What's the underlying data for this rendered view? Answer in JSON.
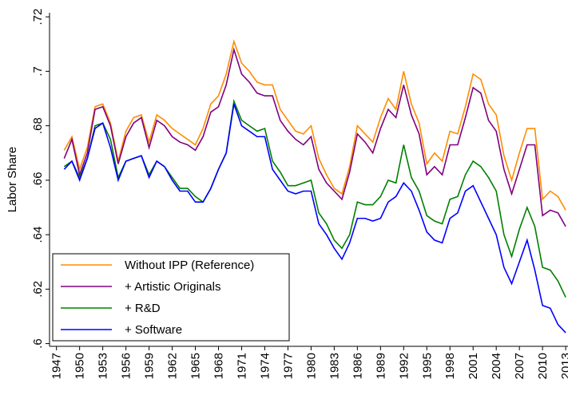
{
  "chart_data": {
    "type": "line",
    "y_label": "Labor Share",
    "x": [
      1948,
      1949,
      1950,
      1951,
      1952,
      1953,
      1954,
      1955,
      1956,
      1957,
      1958,
      1959,
      1960,
      1961,
      1962,
      1963,
      1964,
      1965,
      1966,
      1967,
      1968,
      1969,
      1970,
      1971,
      1972,
      1973,
      1974,
      1975,
      1976,
      1977,
      1978,
      1979,
      1980,
      1981,
      1982,
      1983,
      1984,
      1985,
      1986,
      1987,
      1988,
      1989,
      1990,
      1991,
      1992,
      1993,
      1994,
      1995,
      1996,
      1997,
      1998,
      1999,
      2000,
      2001,
      2002,
      2003,
      2004,
      2005,
      2006,
      2007,
      2008,
      2009,
      2010,
      2011,
      2012,
      2013
    ],
    "series": [
      {
        "name": "Without IPP (Reference)",
        "color": "#ff8c00",
        "values": [
          0.671,
          0.676,
          0.664,
          0.672,
          0.687,
          0.688,
          0.681,
          0.667,
          0.678,
          0.683,
          0.684,
          0.674,
          0.684,
          0.682,
          0.679,
          0.677,
          0.675,
          0.673,
          0.679,
          0.688,
          0.691,
          0.699,
          0.711,
          0.703,
          0.7,
          0.696,
          0.695,
          0.695,
          0.686,
          0.682,
          0.678,
          0.677,
          0.68,
          0.668,
          0.662,
          0.657,
          0.655,
          0.665,
          0.68,
          0.677,
          0.674,
          0.683,
          0.69,
          0.686,
          0.7,
          0.688,
          0.681,
          0.666,
          0.67,
          0.667,
          0.678,
          0.677,
          0.687,
          0.699,
          0.697,
          0.688,
          0.684,
          0.669,
          0.66,
          0.67,
          0.679,
          0.679,
          0.653,
          0.656,
          0.654,
          0.649
        ]
      },
      {
        "name": "+ Artistic Originals",
        "color": "#800080",
        "values": [
          0.668,
          0.675,
          0.662,
          0.67,
          0.686,
          0.687,
          0.68,
          0.666,
          0.676,
          0.681,
          0.683,
          0.672,
          0.682,
          0.68,
          0.676,
          0.674,
          0.673,
          0.671,
          0.676,
          0.685,
          0.687,
          0.695,
          0.708,
          0.699,
          0.696,
          0.692,
          0.691,
          0.691,
          0.682,
          0.678,
          0.675,
          0.673,
          0.676,
          0.664,
          0.659,
          0.656,
          0.653,
          0.663,
          0.677,
          0.674,
          0.67,
          0.679,
          0.686,
          0.683,
          0.695,
          0.684,
          0.677,
          0.662,
          0.665,
          0.662,
          0.673,
          0.673,
          0.683,
          0.694,
          0.692,
          0.682,
          0.678,
          0.664,
          0.655,
          0.664,
          0.673,
          0.673,
          0.647,
          0.649,
          0.648,
          0.643
        ]
      },
      {
        "name": "+ R&D",
        "color": "#008000",
        "values": [
          0.665,
          0.667,
          0.661,
          0.668,
          0.68,
          0.681,
          0.675,
          0.661,
          0.667,
          0.668,
          0.669,
          0.662,
          0.667,
          0.665,
          0.661,
          0.657,
          0.657,
          0.654,
          0.652,
          0.657,
          0.664,
          0.67,
          0.689,
          0.682,
          0.68,
          0.678,
          0.679,
          0.667,
          0.663,
          0.658,
          0.658,
          0.659,
          0.66,
          0.648,
          0.644,
          0.638,
          0.635,
          0.64,
          0.652,
          0.651,
          0.651,
          0.654,
          0.66,
          0.659,
          0.673,
          0.661,
          0.656,
          0.647,
          0.645,
          0.644,
          0.653,
          0.654,
          0.662,
          0.667,
          0.665,
          0.661,
          0.656,
          0.64,
          0.632,
          0.642,
          0.65,
          0.643,
          0.628,
          0.627,
          0.623,
          0.617
        ]
      },
      {
        "name": "+ Software",
        "color": "#0000ff",
        "values": [
          0.664,
          0.667,
          0.66,
          0.668,
          0.679,
          0.681,
          0.672,
          0.66,
          0.667,
          0.668,
          0.669,
          0.661,
          0.667,
          0.665,
          0.66,
          0.656,
          0.656,
          0.652,
          0.652,
          0.657,
          0.664,
          0.67,
          0.688,
          0.68,
          0.678,
          0.676,
          0.676,
          0.664,
          0.66,
          0.656,
          0.655,
          0.656,
          0.656,
          0.644,
          0.64,
          0.635,
          0.631,
          0.637,
          0.646,
          0.646,
          0.645,
          0.646,
          0.652,
          0.654,
          0.659,
          0.656,
          0.649,
          0.641,
          0.638,
          0.637,
          0.646,
          0.648,
          0.656,
          0.658,
          0.652,
          0.646,
          0.64,
          0.628,
          0.622,
          0.63,
          0.638,
          0.627,
          0.614,
          0.613,
          0.607,
          0.604
        ]
      }
    ],
    "xlim": [
      1946.1,
      2013.3
    ],
    "xticks": [
      1947,
      1950,
      1953,
      1956,
      1959,
      1962,
      1965,
      1968,
      1971,
      1974,
      1977,
      1980,
      1983,
      1986,
      1989,
      1992,
      1995,
      1998,
      2001,
      2004,
      2007,
      2010,
      2013
    ],
    "ylim": [
      0.599,
      0.7215
    ],
    "yticks": [
      {
        "value": 0.6,
        "label": ".6"
      },
      {
        "value": 0.62,
        "label": ".62"
      },
      {
        "value": 0.64,
        "label": ".64"
      },
      {
        "value": 0.66,
        "label": ".66"
      },
      {
        "value": 0.68,
        "label": ".68"
      },
      {
        "value": 0.7,
        "label": ".7"
      },
      {
        "value": 0.72,
        "label": ".72"
      }
    ],
    "grid": false,
    "legend_position": "lower left"
  }
}
